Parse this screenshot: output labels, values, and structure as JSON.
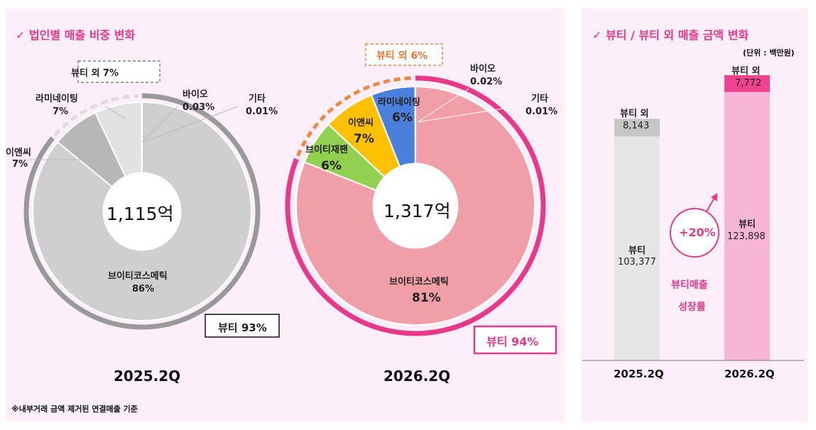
{
  "left": {
    "heading": "✓ 법인별 매출 비중 변화",
    "footnote": "※내부거래 금액 제거된 연결매출 기준"
  },
  "right": {
    "heading": "✓ 뷰티 / 뷰티 외 매출 금액 변화",
    "unit": "(단위 : 백만원)"
  },
  "colors": {
    "accent": "#e8388a",
    "pink_slice": "#f09ea7",
    "grey_slice": "#cfcfcf",
    "yellow": "#ffc000",
    "green": "#92d050",
    "blue": "#4a7fdc",
    "orange": "#ee8844",
    "beauty_bar_2025": "#e5e5e5",
    "non_beauty_bar_2025": "#c6c6c6",
    "beauty_bar_2026": "#f7b6d8",
    "non_beauty_bar_2026": "#f0438f"
  },
  "chart_data": [
    {
      "type": "pie",
      "period": "2025.2Q",
      "center_label": "1,115억",
      "slices": [
        {
          "label": "브이티코스메틱",
          "value_text": "86%",
          "value": 86
        },
        {
          "label": "이앤씨",
          "value_text": "7%",
          "value": 7
        },
        {
          "label": "라미네이팅",
          "value_text": "7%",
          "value": 7
        },
        {
          "label": "바이오",
          "value_text": "0.03%",
          "value": 0.03
        },
        {
          "label": "기타",
          "value_text": "0.01%",
          "value": 0.01
        }
      ],
      "group_labels": {
        "beauty": "뷰티 93%",
        "non_beauty": "뷰티 외 7%"
      }
    },
    {
      "type": "pie",
      "period": "2026.2Q",
      "center_label": "1,317억",
      "slices": [
        {
          "label": "브이티코스메틱",
          "value_text": "81%",
          "value": 81
        },
        {
          "label": "브이티재팬",
          "value_text": "6%",
          "value": 6
        },
        {
          "label": "이앤씨",
          "value_text": "7%",
          "value": 7
        },
        {
          "label": "라미네이팅",
          "value_text": "6%",
          "value": 6
        },
        {
          "label": "바이오",
          "value_text": "0.02%",
          "value": 0.02
        },
        {
          "label": "기타",
          "value_text": "0.01%",
          "value": 0.01
        }
      ],
      "group_labels": {
        "beauty": "뷰티 94%",
        "non_beauty": "뷰티 외 6%"
      }
    },
    {
      "type": "bar",
      "stacked": true,
      "categories": [
        "2025.2Q",
        "2026.2Q"
      ],
      "series": [
        {
          "name": "뷰티",
          "values": [
            103377,
            123898
          ],
          "labels": [
            "103,377",
            "123,898"
          ]
        },
        {
          "name": "뷰티 외",
          "values": [
            8143,
            7772
          ],
          "labels": [
            "8,143",
            "7,772"
          ]
        }
      ],
      "annotation": {
        "growth": "+20%",
        "caption_line1": "뷰티매출",
        "caption_line2": "성장률"
      }
    }
  ]
}
